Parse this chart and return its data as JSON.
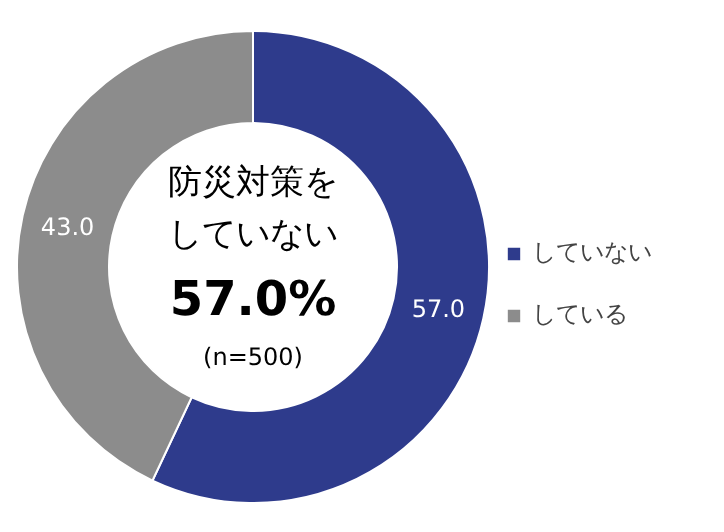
{
  "chart_data": {
    "type": "donut",
    "categories": [
      "していない",
      "している"
    ],
    "values": [
      57.0,
      43.0
    ],
    "colors": [
      "#2e3b8c",
      "#8c8c8c"
    ],
    "value_labels": [
      "57.0",
      "43.0"
    ],
    "annotations": [
      "防災対策を",
      "していない",
      "57.0%",
      "(n=500)"
    ],
    "legend": "right"
  }
}
